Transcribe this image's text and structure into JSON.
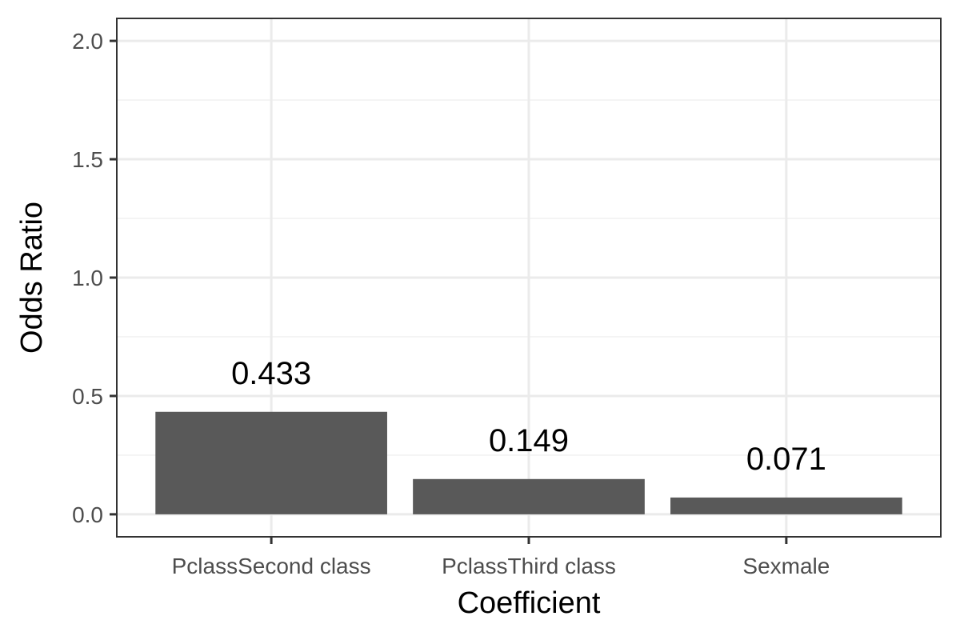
{
  "chart_data": {
    "type": "bar",
    "title": "",
    "xlabel": "Coefficient",
    "ylabel": "Odds Ratio",
    "categories": [
      "PclassSecond class",
      "PclassThird class",
      "Sexmale"
    ],
    "values": [
      0.433,
      0.149,
      0.071
    ],
    "data_labels": [
      "0.433",
      "0.149",
      "0.071"
    ],
    "ylim": [
      -0.095,
      2.095
    ],
    "yticks": [
      0.0,
      0.5,
      1.0,
      1.5,
      2.0
    ],
    "ytick_labels": [
      "0.0",
      "0.5",
      "1.0",
      "1.5",
      "2.0"
    ],
    "yminor": [
      0.25,
      0.75,
      1.25,
      1.75
    ],
    "grid": true,
    "legend": "none",
    "bar_color": "#595959"
  }
}
